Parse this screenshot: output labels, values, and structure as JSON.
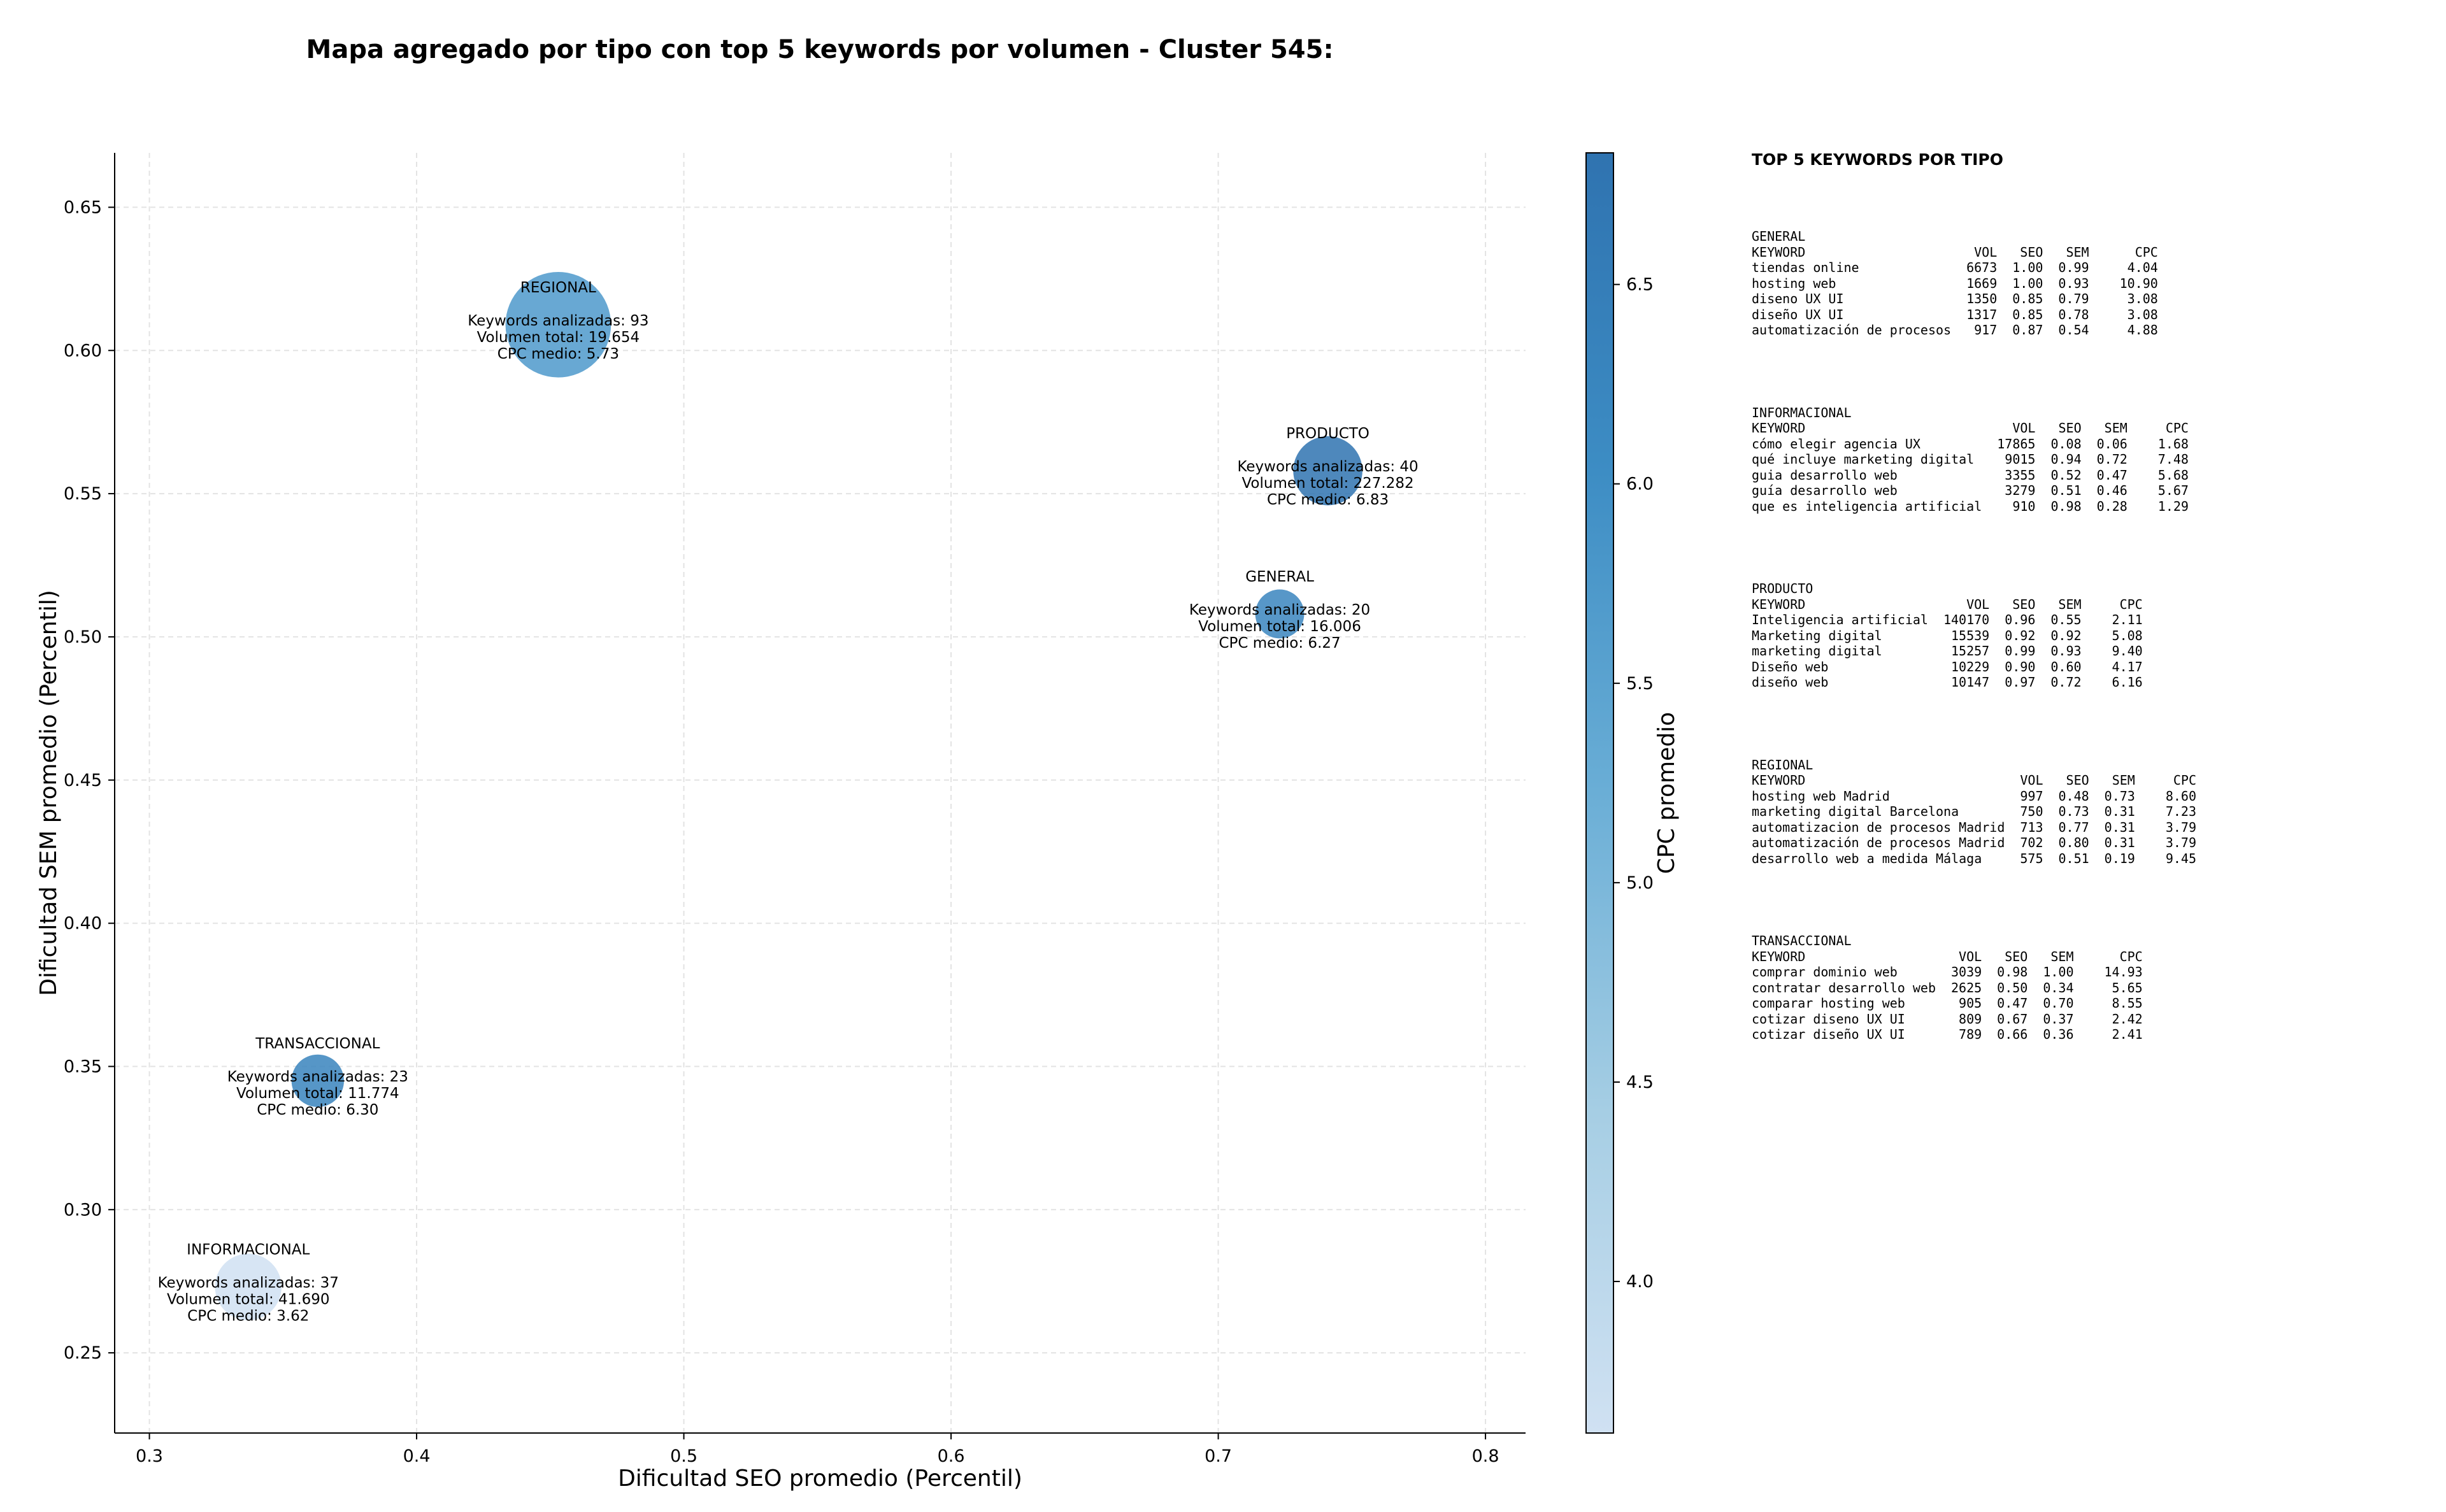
{
  "chart_data": {
    "type": "bubble",
    "title": "Mapa agregado por tipo con top 5 keywords por volumen - Cluster 545:",
    "xlabel": "Dificultad SEO promedio (Percentil)",
    "ylabel": "Dificultad SEM promedio (Percentil)",
    "xlim": [
      0.287,
      0.815
    ],
    "ylim": [
      0.222,
      0.669
    ],
    "xticks": [
      "0.3",
      "0.4",
      "0.5",
      "0.6",
      "0.7",
      "0.8"
    ],
    "yticks": [
      "0.25",
      "0.30",
      "0.35",
      "0.40",
      "0.45",
      "0.50",
      "0.55",
      "0.60",
      "0.65"
    ],
    "grid": true,
    "colorbar": {
      "label": "CPC promedio",
      "range": [
        3.62,
        6.83
      ],
      "ticks": [
        "4.0",
        "4.5",
        "5.0",
        "5.5",
        "6.0",
        "6.5"
      ],
      "colormap": "Blues"
    },
    "points": [
      {
        "name": "INFORMACIONAL",
        "x": 0.337,
        "y": 0.273,
        "keywords_label": "Keywords analizadas: 37",
        "volume_label": "Volumen total: 41.690",
        "cpc_label": "CPC medio: 3.62",
        "keywords": 37,
        "volume": 41690,
        "cpc": 3.62
      },
      {
        "name": "REGIONAL",
        "x": 0.453,
        "y": 0.609,
        "keywords_label": "Keywords analizadas: 93",
        "volume_label": "Volumen total: 19.654",
        "cpc_label": "CPC medio: 5.73",
        "keywords": 93,
        "volume": 19654,
        "cpc": 5.73
      },
      {
        "name": "GENERAL",
        "x": 0.723,
        "y": 0.508,
        "keywords_label": "Keywords analizadas: 20",
        "volume_label": "Volumen total: 16.006",
        "cpc_label": "CPC medio: 6.27",
        "keywords": 20,
        "volume": 16006,
        "cpc": 6.27
      },
      {
        "name": "PRODUCTO",
        "x": 0.741,
        "y": 0.558,
        "keywords_label": "Keywords analizadas: 40",
        "volume_label": "Volumen total: 227.282",
        "cpc_label": "CPC medio: 6.83",
        "keywords": 40,
        "volume": 227282,
        "cpc": 6.83
      },
      {
        "name": "TRANSACCIONAL",
        "x": 0.363,
        "y": 0.345,
        "keywords_label": "Keywords analizadas: 23",
        "volume_label": "Volumen total: 11.774",
        "cpc_label": "CPC medio: 6.30",
        "keywords": 23,
        "volume": 11774,
        "cpc": 6.3
      }
    ]
  },
  "top_keywords": {
    "title": "TOP 5 KEYWORDS POR TIPO",
    "columns": [
      "KEYWORD",
      "VOL",
      "SEO",
      "SEM",
      "CPC"
    ],
    "groups": [
      {
        "name": "GENERAL",
        "rows": [
          [
            "tiendas online",
            "6673",
            "1.00",
            "0.99",
            "4.04"
          ],
          [
            "hosting web",
            "1669",
            "1.00",
            "0.93",
            "10.90"
          ],
          [
            "diseno UX UI",
            "1350",
            "0.85",
            "0.79",
            "3.08"
          ],
          [
            "diseño UX UI",
            "1317",
            "0.85",
            "0.78",
            "3.08"
          ],
          [
            "automatización de procesos",
            "917",
            "0.87",
            "0.54",
            "4.88"
          ]
        ]
      },
      {
        "name": "INFORMACIONAL",
        "rows": [
          [
            "cómo elegir agencia UX",
            "17865",
            "0.08",
            "0.06",
            "1.68"
          ],
          [
            "qué incluye marketing digital",
            "9015",
            "0.94",
            "0.72",
            "7.48"
          ],
          [
            "guia desarrollo web",
            "3355",
            "0.52",
            "0.47",
            "5.68"
          ],
          [
            "guía desarrollo web",
            "3279",
            "0.51",
            "0.46",
            "5.67"
          ],
          [
            "que es inteligencia artificial",
            "910",
            "0.98",
            "0.28",
            "1.29"
          ]
        ]
      },
      {
        "name": "PRODUCTO",
        "rows": [
          [
            "Inteligencia artificial",
            "140170",
            "0.96",
            "0.55",
            "2.11"
          ],
          [
            "Marketing digital",
            "15539",
            "0.92",
            "0.92",
            "5.08"
          ],
          [
            "marketing digital",
            "15257",
            "0.99",
            "0.93",
            "9.40"
          ],
          [
            "Diseño web",
            "10229",
            "0.90",
            "0.60",
            "4.17"
          ],
          [
            "diseño web",
            "10147",
            "0.97",
            "0.72",
            "6.16"
          ]
        ]
      },
      {
        "name": "REGIONAL",
        "rows": [
          [
            "hosting web Madrid",
            "997",
            "0.48",
            "0.73",
            "8.60"
          ],
          [
            "marketing digital Barcelona",
            "750",
            "0.73",
            "0.31",
            "7.23"
          ],
          [
            "automatizacion de procesos Madrid",
            "713",
            "0.77",
            "0.31",
            "3.79"
          ],
          [
            "automatización de procesos Madrid",
            "702",
            "0.80",
            "0.31",
            "3.79"
          ],
          [
            "desarrollo web a medida Málaga",
            "575",
            "0.51",
            "0.19",
            "9.45"
          ]
        ]
      },
      {
        "name": "TRANSACCIONAL",
        "rows": [
          [
            "comprar dominio web",
            "3039",
            "0.98",
            "1.00",
            "14.93"
          ],
          [
            "contratar desarrollo web",
            "2625",
            "0.50",
            "0.34",
            "5.65"
          ],
          [
            "comparar hosting web",
            "905",
            "0.47",
            "0.70",
            "8.55"
          ],
          [
            "cotizar diseno UX UI",
            "809",
            "0.67",
            "0.37",
            "2.42"
          ],
          [
            "cotizar diseño UX UI",
            "789",
            "0.66",
            "0.36",
            "2.41"
          ]
        ]
      }
    ]
  }
}
